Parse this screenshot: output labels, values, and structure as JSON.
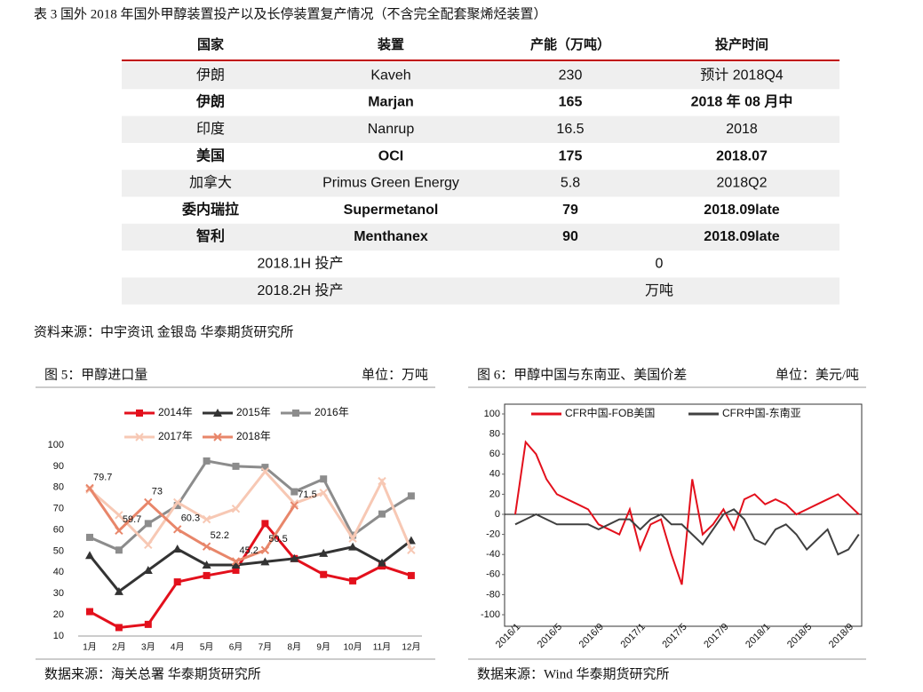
{
  "table_title": "表 3 国外 2018 年国外甲醇装置投产以及长停装置复产情况（不含完全配套聚烯烃装置）",
  "table": {
    "header": [
      "国家",
      "装置",
      "产能（万吨）",
      "投产时间"
    ],
    "rows": [
      {
        "cells": [
          "伊朗",
          "Kaveh",
          "230",
          "预计 2018Q4"
        ],
        "highlight": false
      },
      {
        "cells": [
          "伊朗",
          "Marjan",
          "165",
          "2018 年 08 月中"
        ],
        "highlight": true
      },
      {
        "cells": [
          "印度",
          "Nanrup",
          "16.5",
          "2018"
        ],
        "highlight": false
      },
      {
        "cells": [
          "美国",
          "OCI",
          "175",
          "2018.07"
        ],
        "highlight": true
      },
      {
        "cells": [
          "加拿大",
          "Primus Green Energy",
          "5.8",
          "2018Q2"
        ],
        "highlight": false
      },
      {
        "cells": [
          "委内瑞拉",
          "Supermetanol",
          "79",
          "2018.09late"
        ],
        "highlight": true
      },
      {
        "cells": [
          "智利",
          "Menthanex",
          "90",
          "2018.09late"
        ],
        "highlight": true
      }
    ],
    "summary": [
      [
        "2018.1H 投产",
        "0"
      ],
      [
        "2018.2H 投产",
        "万吨"
      ]
    ]
  },
  "table_source": "资料来源：中宇资讯 金银岛 华泰期货研究所",
  "chart_data": [
    {
      "type": "line",
      "panel_title": "图 5：甲醇进口量",
      "unit": "单位：万吨",
      "source": "数据来源：海关总署 华泰期货研究所",
      "categories": [
        "1月",
        "2月",
        "3月",
        "4月",
        "5月",
        "6月",
        "7月",
        "8月",
        "9月",
        "10月",
        "11月",
        "12月"
      ],
      "ylim": [
        10,
        100
      ],
      "yticks": [
        10,
        20,
        30,
        40,
        50,
        60,
        70,
        80,
        90,
        100
      ],
      "series": [
        {
          "name": "2014年",
          "color": "#e3101c",
          "marker": "square",
          "values": [
            21.5,
            14,
            15.5,
            35.5,
            38.5,
            41,
            63,
            46.5,
            39,
            36,
            43,
            38.5
          ]
        },
        {
          "name": "2015年",
          "color": "#333333",
          "marker": "triangle",
          "values": [
            48,
            31,
            41,
            51,
            43.5,
            43.5,
            45,
            46.5,
            49,
            52,
            44.5,
            55
          ]
        },
        {
          "name": "2016年",
          "color": "#8c8c8c",
          "marker": "square",
          "values": [
            56.5,
            50.5,
            63,
            71.5,
            92.5,
            90,
            89.5,
            78,
            84,
            57.5,
            67.5,
            76
          ]
        },
        {
          "name": "2017年",
          "color": "#f7c8b4",
          "marker": "x",
          "values": [
            79,
            67,
            53,
            73,
            65,
            70,
            87.5,
            72.5,
            77.5,
            56,
            83,
            50.5
          ]
        },
        {
          "name": "2018年",
          "color": "#e8866a",
          "marker": "x",
          "data_labels": true,
          "values": [
            79.7,
            59.7,
            73,
            60.3,
            52.2,
            45.2,
            50.5,
            71.5,
            null,
            null,
            null,
            null
          ]
        }
      ]
    },
    {
      "type": "line",
      "panel_title": "图 6：甲醇中国与东南亚、美国价差",
      "unit": "单位：美元/吨",
      "source": "数据来源：Wind 华泰期货研究所",
      "categories": [
        "2016/1",
        null,
        null,
        null,
        "2016/5",
        null,
        null,
        null,
        "2016/9",
        null,
        null,
        null,
        "2017/1",
        null,
        null,
        null,
        "2017/5",
        null,
        null,
        null,
        "2017/9",
        null,
        null,
        null,
        "2018/1",
        null,
        null,
        null,
        "2018/5",
        null,
        null,
        null,
        "2018/9",
        null
      ],
      "ylim": [
        -100,
        100
      ],
      "yticks": [
        -100,
        -80,
        -60,
        -40,
        -20,
        0,
        20,
        40,
        60,
        80,
        100
      ],
      "series": [
        {
          "name": "CFR中国-FOB美国",
          "color": "#e3101c",
          "values": [
            0,
            72,
            60,
            35,
            20,
            15,
            10,
            5,
            -10,
            -15,
            -20,
            5,
            -35,
            -10,
            -5,
            -40,
            -70,
            35,
            -20,
            -10,
            5,
            -15,
            15,
            20,
            10,
            15,
            10,
            0,
            5,
            10,
            15,
            20,
            10,
            0
          ]
        },
        {
          "name": "CFR中国-东南亚",
          "color": "#404040",
          "values": [
            -10,
            -5,
            0,
            -5,
            -10,
            -10,
            -10,
            -10,
            -15,
            -10,
            -5,
            -5,
            -15,
            -5,
            0,
            -10,
            -10,
            -20,
            -30,
            -15,
            0,
            5,
            -5,
            -25,
            -30,
            -15,
            -10,
            -20,
            -35,
            -25,
            -15,
            -40,
            -35,
            -20
          ]
        }
      ]
    }
  ]
}
